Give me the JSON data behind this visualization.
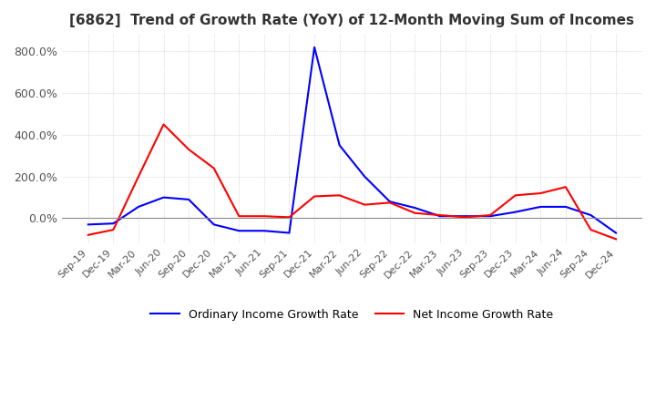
{
  "title": "[6862]  Trend of Growth Rate (YoY) of 12-Month Moving Sum of Incomes",
  "title_fontsize": 11,
  "bg_color": "#ffffff",
  "grid_color": "#aaaaaa",
  "ordinary_color": "#0000ff",
  "net_color": "#ff0000",
  "legend_ordinary": "Ordinary Income Growth Rate",
  "legend_net": "Net Income Growth Rate",
  "ylim": [
    -120,
    880
  ],
  "yticks": [
    0,
    200,
    400,
    600,
    800
  ],
  "ytick_labels": [
    "0.0%",
    "200.0%",
    "400.0%",
    "600.0%",
    "800.0%"
  ],
  "x_labels": [
    "Sep-19",
    "Dec-19",
    "Mar-20",
    "Jun-20",
    "Sep-20",
    "Dec-20",
    "Mar-21",
    "Jun-21",
    "Sep-21",
    "Dec-21",
    "Mar-22",
    "Jun-22",
    "Sep-22",
    "Dec-22",
    "Mar-23",
    "Jun-23",
    "Sep-23",
    "Dec-23",
    "Mar-24",
    "Jun-24",
    "Sep-24",
    "Dec-24"
  ],
  "ordinary_values": [
    -30,
    -25,
    55,
    100,
    90,
    -30,
    -60,
    -60,
    -70,
    820,
    350,
    200,
    80,
    50,
    10,
    10,
    10,
    30,
    55,
    55,
    15,
    -70
  ],
  "net_values": [
    -80,
    -55,
    200,
    450,
    330,
    240,
    10,
    10,
    5,
    105,
    110,
    65,
    75,
    25,
    15,
    5,
    15,
    110,
    120,
    150,
    -55,
    -100
  ]
}
